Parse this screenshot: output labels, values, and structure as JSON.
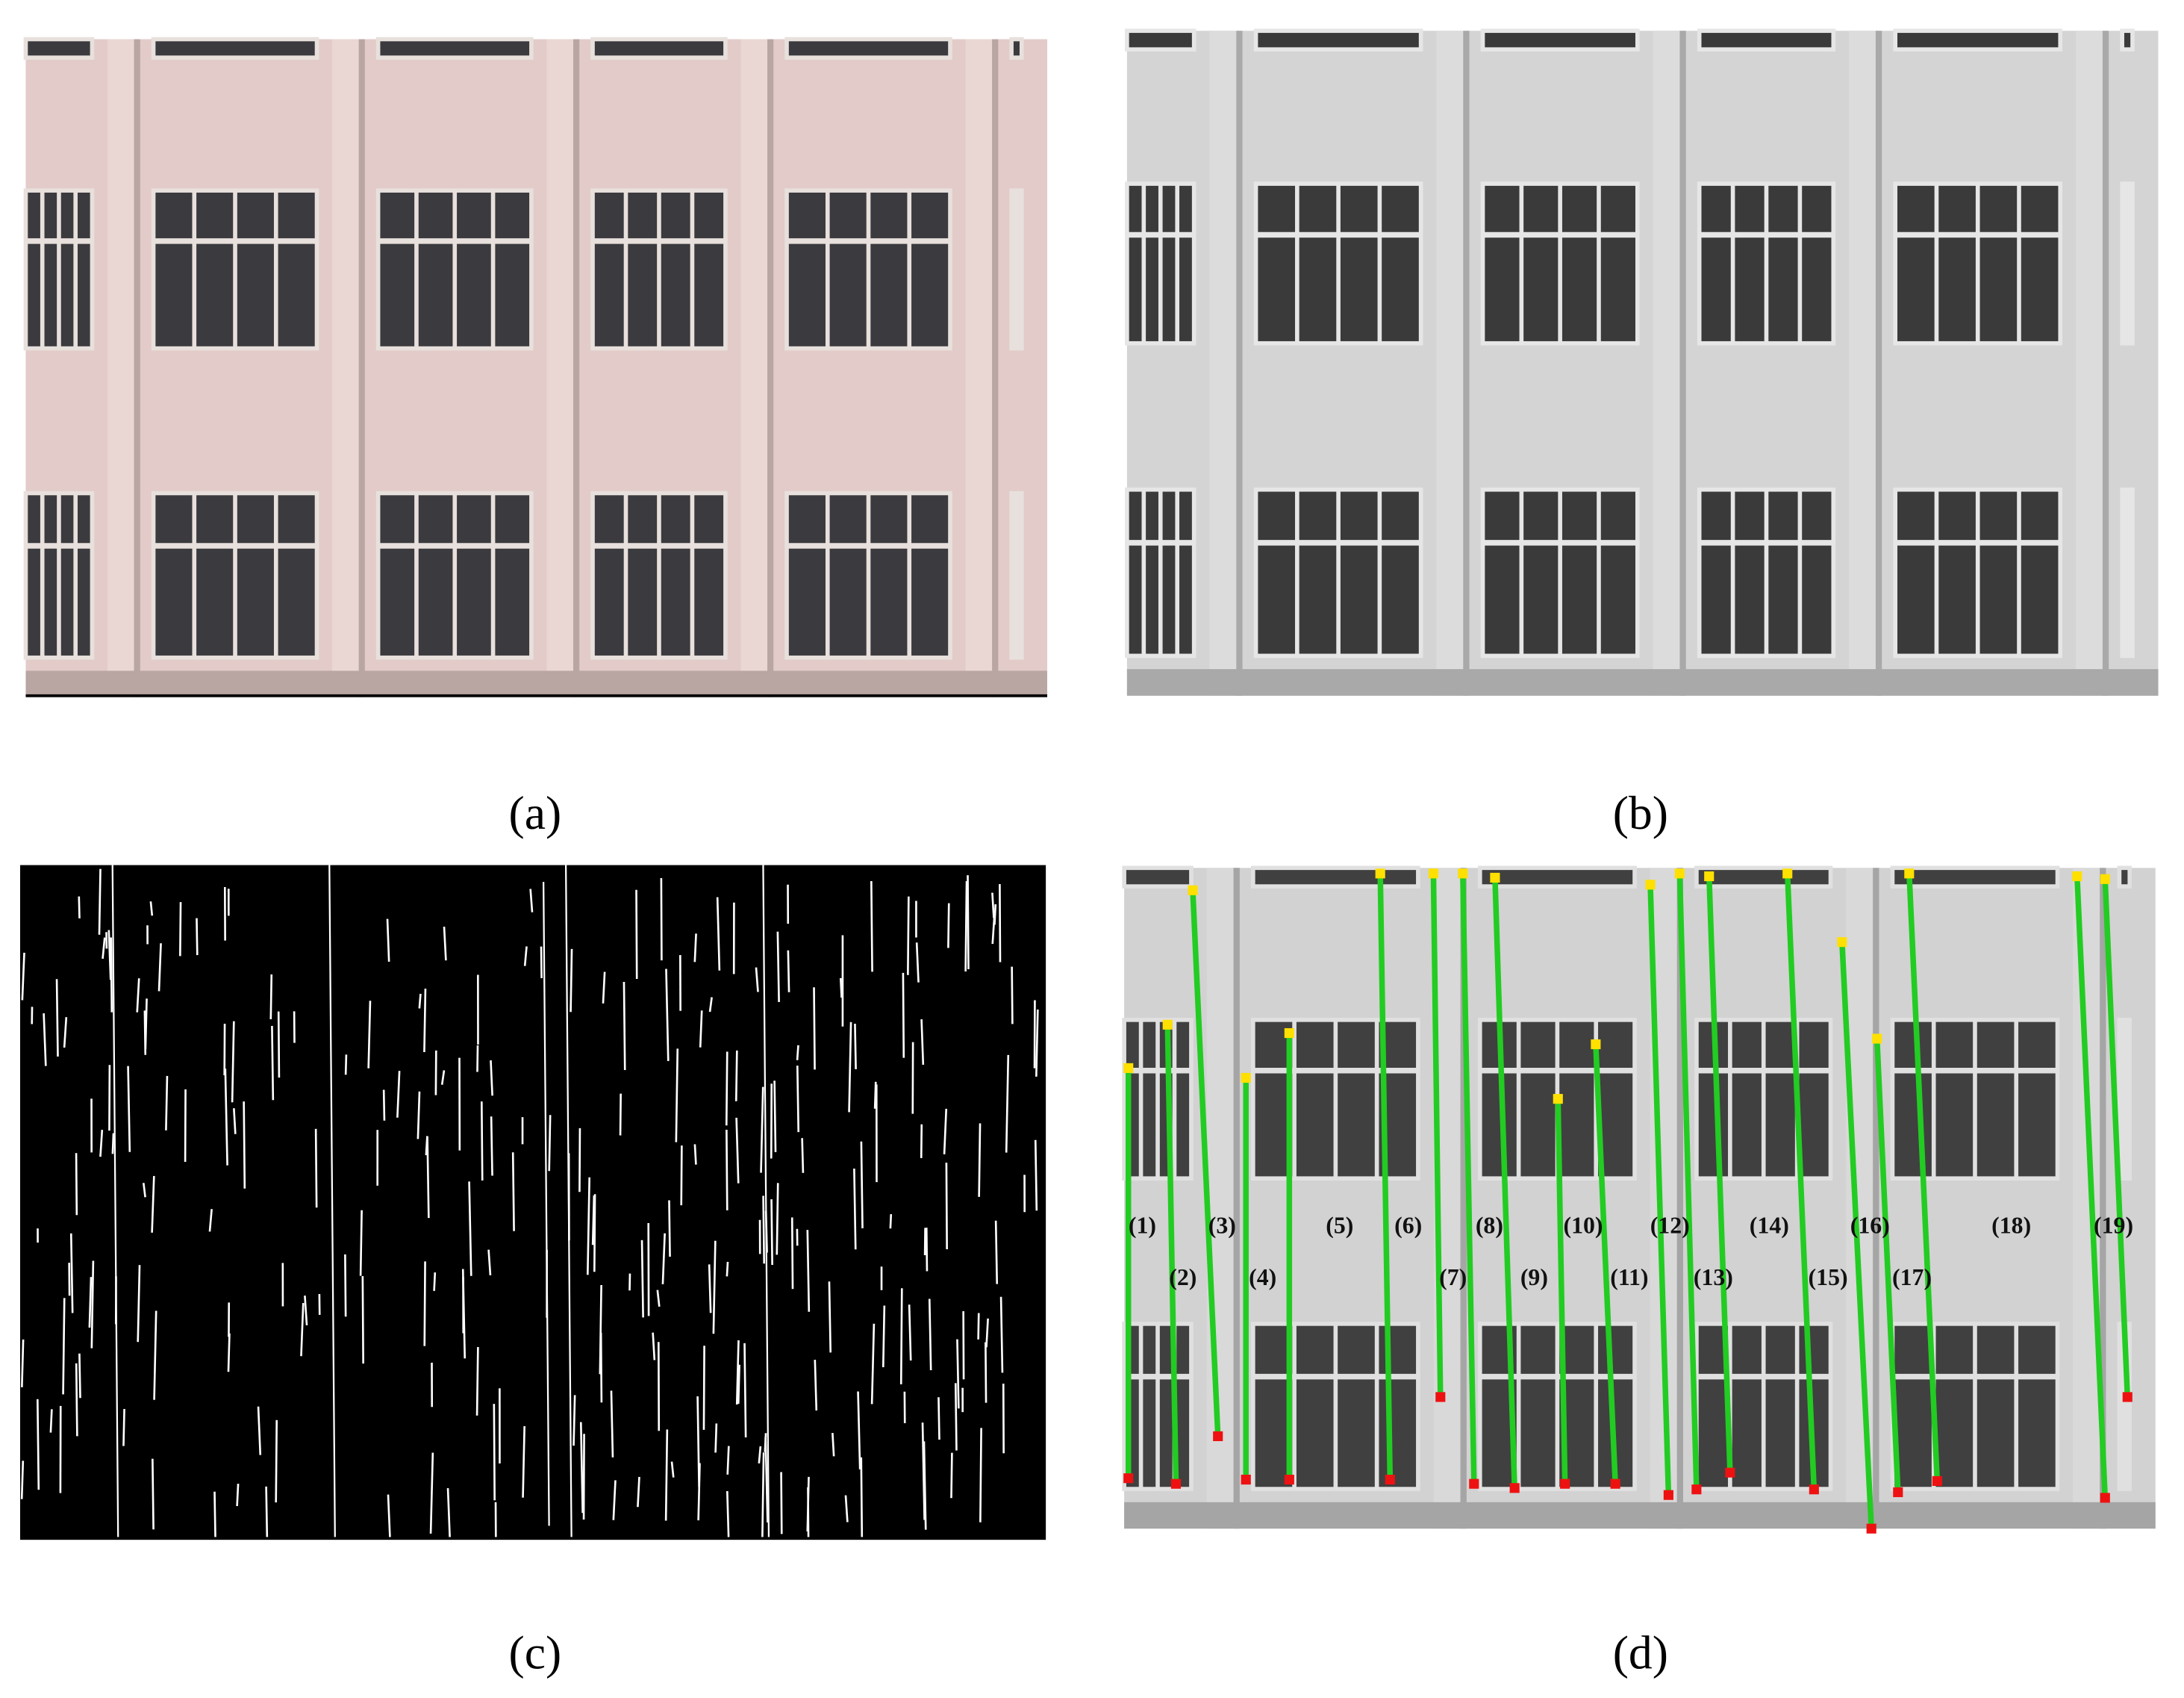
{
  "panels": [
    {
      "caption": "(a)"
    },
    {
      "caption": "(b)"
    },
    {
      "caption": "(c)"
    },
    {
      "caption": "(d)"
    }
  ],
  "line_labels": [
    "(1)",
    "(2)",
    "(3)",
    "(4)",
    "(5)",
    "(6)",
    "(7)",
    "(8)",
    "(9)",
    "(10)",
    "(11)",
    "(12)",
    "(13)",
    "(14)",
    "(15)",
    "(16)",
    "(17)",
    "(18)",
    "(19)"
  ]
}
